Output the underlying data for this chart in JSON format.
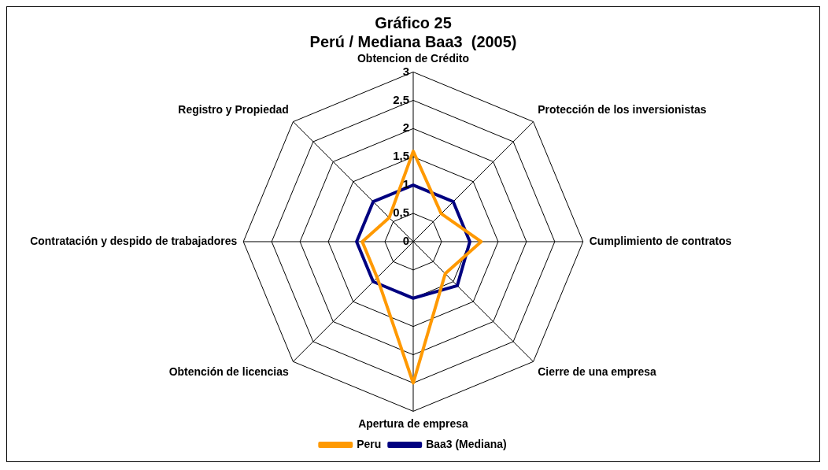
{
  "chart_data": {
    "type": "radar",
    "title": "Gráfico 25",
    "subtitle": "Perú / Mediana Baa3  (2005)",
    "categories": [
      "Obtencion de Crédito",
      "Protección de los inversionistas",
      "Cumplimiento de contratos",
      "Cierre de una empresa",
      "Apertura de empresa",
      "Obtención de licencias",
      "Contratación y despido de trabajadores",
      "Registro y Propiedad"
    ],
    "series": [
      {
        "name": "Peru",
        "color": "#ff9900",
        "values": [
          1.6,
          0.7,
          1.2,
          0.8,
          2.5,
          0.9,
          0.9,
          0.6
        ]
      },
      {
        "name": "Baa3 (Mediana)",
        "color": "#000080",
        "values": [
          1.0,
          1.0,
          1.0,
          1.1,
          1.0,
          1.0,
          1.0,
          1.0
        ]
      }
    ],
    "ylim": [
      0,
      3
    ],
    "yticks": [
      0,
      {
        "value": 0.5,
        "label": "0,5"
      },
      1,
      {
        "value": 1.5,
        "label": "1,5"
      },
      2,
      {
        "value": 2.5,
        "label": "2,5"
      },
      3
    ],
    "legend": "bottom",
    "marker": "none",
    "line_style": "solid",
    "grid": true
  }
}
